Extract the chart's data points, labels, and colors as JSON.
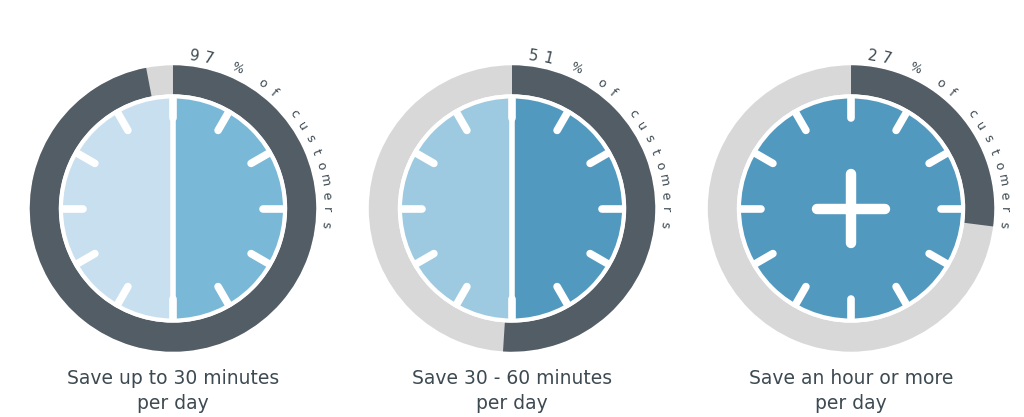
{
  "clocks": [
    {
      "percentage": 97,
      "label_pct": "97",
      "label_text": "% of customers",
      "caption": "Save up to 30 minutes\nper day",
      "fill_left": "#c8dff0",
      "fill_right": "#7ab8d8",
      "outer_ring_active": "#535d65",
      "outer_ring_inactive": "#d8d8d8",
      "show_plus": false,
      "show_divider": true
    },
    {
      "percentage": 51,
      "label_pct": "51",
      "label_text": "% of customers",
      "caption": "Save 30 - 60 minutes\nper day",
      "fill_left": "#9dcae0",
      "fill_right": "#5299bf",
      "outer_ring_active": "#535d65",
      "outer_ring_inactive": "#d8d8d8",
      "show_plus": false,
      "show_divider": true
    },
    {
      "percentage": 27,
      "label_pct": "27",
      "label_text": "% of customers",
      "caption": "Save an hour or more\nper day",
      "fill_left": "#5299bf",
      "fill_right": "#5299bf",
      "outer_ring_active": "#535d65",
      "outer_ring_inactive": "#d8d8d8",
      "show_plus": true,
      "show_divider": false
    }
  ],
  "bg_color": "#ffffff",
  "text_color": "#3d4a52",
  "font_size_caption": 13.5,
  "tick_color": "#ffffff",
  "n_ticks": 12
}
